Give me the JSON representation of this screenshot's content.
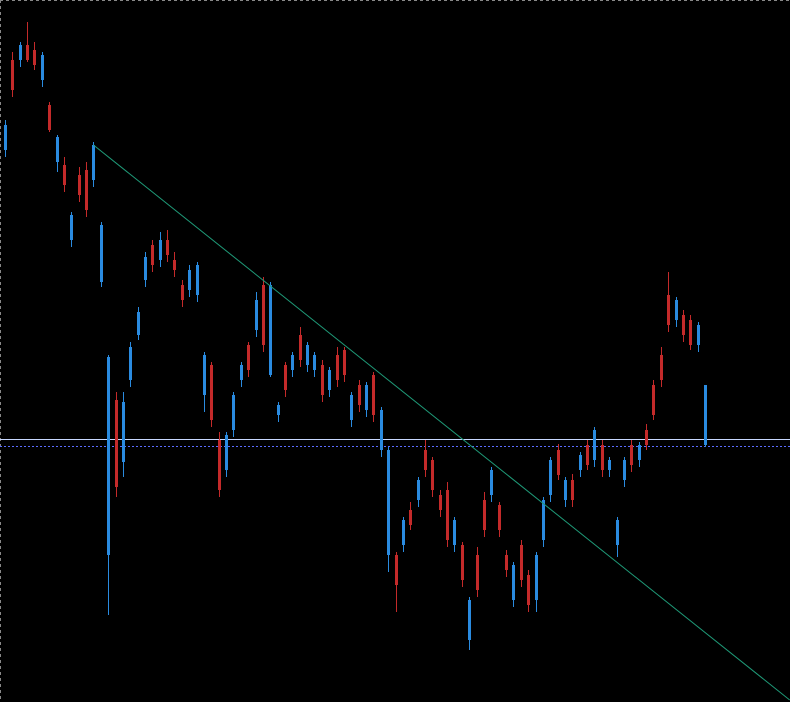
{
  "chart_data": {
    "type": "candlestick",
    "ylim": [
      0,
      702
    ],
    "up_color": "#2a8be0",
    "down_color": "#c42a2a",
    "open": [
      552,
      642,
      642,
      657,
      652,
      622,
      597,
      540,
      537,
      462,
      527,
      532,
      522,
      420,
      147,
      302,
      240,
      322,
      367,
      422,
      457,
      442,
      462,
      442,
      417,
      412,
      407,
      307,
      337,
      262,
      232,
      272,
      322,
      357,
      372,
      417,
      327,
      287,
      337,
      332,
      367,
      337,
      332,
      337,
      312,
      347,
      352,
      282,
      317,
      292,
      327,
      252,
      147,
      147,
      157,
      192,
      202,
      252,
      242,
      207,
      212,
      157,
      157,
      62,
      147,
      202,
      207,
      197,
      147,
      102,
      157,
      127,
      102,
      162,
      207,
      252,
      202,
      222,
      232,
      257,
      242,
      257,
      232,
      157,
      222,
      257,
      242,
      272,
      317,
      347,
      407,
      382,
      387,
      382,
      357,
      257
    ],
    "high": [
      582,
      650,
      660,
      680,
      660,
      650,
      600,
      567,
      545,
      490,
      535,
      540,
      560,
      480,
      347,
      310,
      310,
      360,
      395,
      450,
      462,
      470,
      472,
      450,
      422,
      437,
      440,
      350,
      340,
      270,
      270,
      310,
      340,
      360,
      410,
      425,
      420,
      300,
      340,
      350,
      375,
      360,
      350,
      342,
      335,
      355,
      355,
      310,
      322,
      320,
      330,
      295,
      255,
      150,
      185,
      200,
      225,
      262,
      245,
      212,
      220,
      185,
      160,
      105,
      155,
      210,
      235,
      200,
      152,
      140,
      162,
      132,
      150,
      205,
      245,
      258,
      225,
      228,
      250,
      262,
      275,
      262,
      245,
      185,
      245,
      262,
      260,
      278,
      322,
      355,
      430,
      405,
      392,
      387,
      380,
      317
    ],
    "low": [
      545,
      605,
      635,
      640,
      632,
      615,
      570,
      530,
      510,
      455,
      500,
      485,
      515,
      415,
      87,
      205,
      225,
      315,
      362,
      415,
      430,
      435,
      440,
      425,
      395,
      405,
      400,
      290,
      275,
      205,
      225,
      265,
      315,
      325,
      365,
      350,
      325,
      280,
      305,
      325,
      335,
      330,
      325,
      300,
      305,
      315,
      320,
      275,
      290,
      285,
      280,
      245,
      130,
      90,
      150,
      172,
      195,
      225,
      205,
      185,
      155,
      150,
      115,
      52,
      105,
      165,
      200,
      165,
      125,
      95,
      115,
      90,
      90,
      155,
      200,
      222,
      195,
      195,
      225,
      232,
      235,
      225,
      225,
      145,
      215,
      230,
      235,
      252,
      282,
      315,
      370,
      375,
      360,
      352,
      350,
      255
    ],
    "close": [
      577,
      612,
      657,
      642,
      637,
      647,
      572,
      565,
      517,
      487,
      507,
      492,
      557,
      477,
      345,
      215,
      300,
      355,
      390,
      445,
      437,
      462,
      447,
      432,
      402,
      432,
      437,
      347,
      282,
      212,
      267,
      307,
      337,
      332,
      402,
      357,
      417,
      297,
      312,
      347,
      342,
      357,
      347,
      307,
      332,
      322,
      327,
      307,
      297,
      317,
      287,
      292,
      252,
      117,
      182,
      177,
      222,
      232,
      212,
      192,
      162,
      182,
      122,
      102,
      112,
      172,
      232,
      172,
      132,
      137,
      122,
      97,
      147,
      202,
      242,
      227,
      222,
      202,
      247,
      237,
      272,
      232,
      242,
      182,
      242,
      237,
      257,
      257,
      287,
      322,
      377,
      402,
      367,
      357,
      377,
      317
    ],
    "trendline": {
      "color": "#1f9a78",
      "start": [
        12,
        557
      ],
      "end": [
        106.5,
        2
      ]
    },
    "hlines": [
      {
        "value": 263,
        "color": "#c8d8ff",
        "style": "solid"
      },
      {
        "value": 256,
        "color": "#5a6cff",
        "style": "dashed"
      }
    ]
  }
}
